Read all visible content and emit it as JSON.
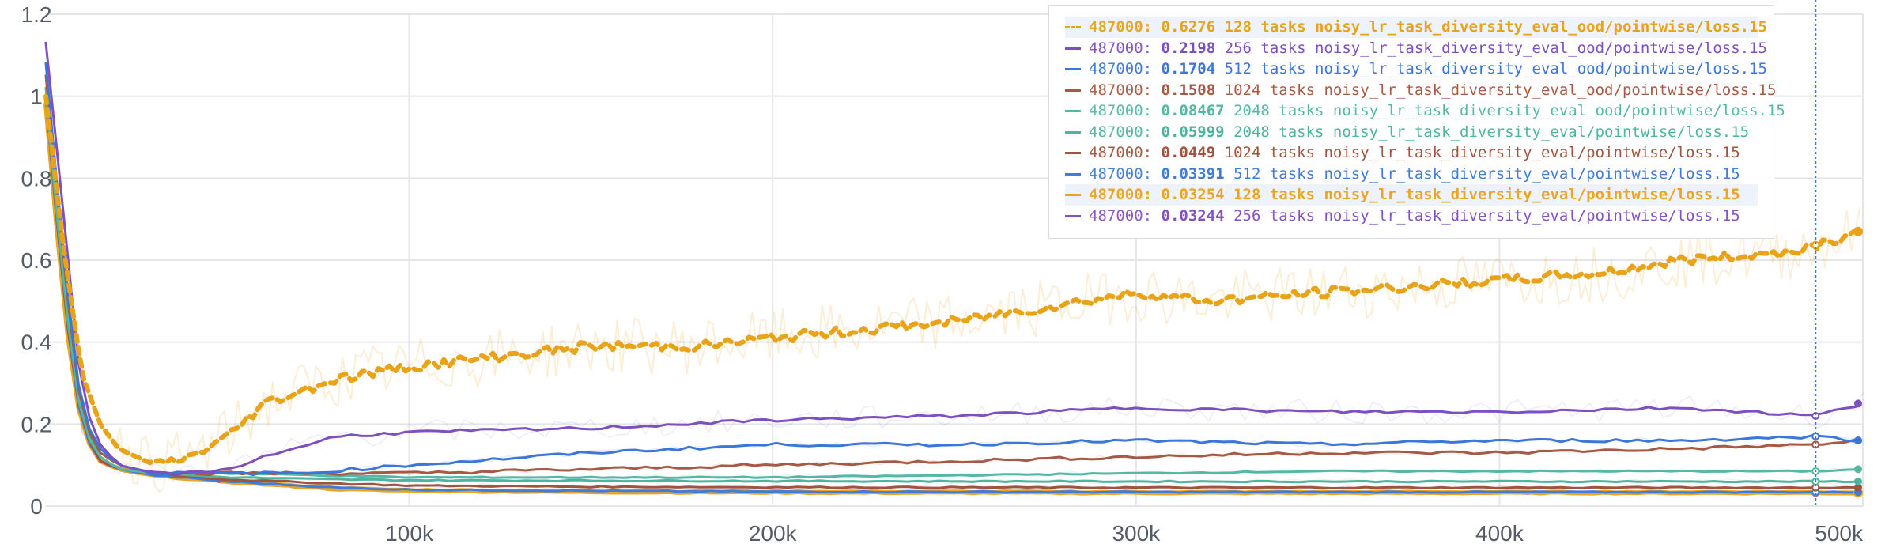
{
  "chart_data": {
    "type": "line",
    "title": "",
    "xlabel": "",
    "ylabel": "",
    "xlim": [
      0,
      500000
    ],
    "ylim": [
      0,
      1.2
    ],
    "grid": true,
    "legend_placement": "top-right",
    "hover_step": 487000,
    "x_ticks": [
      100000,
      200000,
      300000,
      400000,
      500000
    ],
    "x_tick_labels": [
      "100k",
      "200k",
      "300k",
      "400k",
      "500k"
    ],
    "y_ticks": [
      0,
      0.2,
      0.4,
      0.6,
      0.8,
      1,
      1.2
    ],
    "y_tick_labels": [
      "0",
      "0.2",
      "0.4",
      "0.6",
      "0.8",
      "1",
      "1.2"
    ],
    "series": [
      {
        "name": "128 tasks noisy_lr_task_diversity_eval_ood/pointwise/loss.15",
        "legend_step": "487000:",
        "legend_value": "0.6276",
        "legend_label": "128 tasks noisy_lr_task_diversity_eval_ood/pointwise/loss.15",
        "color": "#e8a319",
        "dashed": true,
        "highlight": true,
        "x": [
          0,
          5000,
          10000,
          15000,
          20000,
          30000,
          40000,
          50000,
          60000,
          80000,
          100000,
          120000,
          150000,
          180000,
          200000,
          250000,
          300000,
          320000,
          350000,
          400000,
          430000,
          450000,
          480000,
          500000
        ],
        "y": [
          1.0,
          0.62,
          0.32,
          0.2,
          0.14,
          0.1,
          0.12,
          0.17,
          0.25,
          0.31,
          0.34,
          0.36,
          0.39,
          0.39,
          0.41,
          0.45,
          0.52,
          0.5,
          0.52,
          0.55,
          0.57,
          0.6,
          0.62,
          0.67
        ]
      },
      {
        "name": "256 tasks noisy_lr_task_diversity_eval_ood/pointwise/loss.15",
        "legend_step": "487000:",
        "legend_value": "0.2198",
        "legend_label": "256 tasks noisy_lr_task_diversity_eval_ood/pointwise/loss.15",
        "color": "#7d4fc1",
        "dashed": false,
        "highlight": false,
        "x": [
          0,
          5000,
          10000,
          15000,
          20000,
          30000,
          40000,
          50000,
          60000,
          80000,
          100000,
          150000,
          200000,
          250000,
          300000,
          350000,
          400000,
          450000,
          487000,
          500000
        ],
        "y": [
          1.13,
          0.7,
          0.26,
          0.15,
          0.1,
          0.08,
          0.08,
          0.09,
          0.12,
          0.17,
          0.18,
          0.19,
          0.21,
          0.22,
          0.24,
          0.23,
          0.23,
          0.24,
          0.22,
          0.25
        ]
      },
      {
        "name": "512 tasks noisy_lr_task_diversity_eval_ood/pointwise/loss.15",
        "legend_step": "487000:",
        "legend_value": "0.1704",
        "legend_label": "512 tasks noisy_lr_task_diversity_eval_ood/pointwise/loss.15",
        "color": "#3b77d8",
        "dashed": false,
        "highlight": false,
        "x": [
          0,
          5000,
          10000,
          15000,
          20000,
          30000,
          50000,
          70000,
          100000,
          150000,
          200000,
          250000,
          300000,
          350000,
          400000,
          450000,
          487000,
          500000
        ],
        "y": [
          1.08,
          0.6,
          0.22,
          0.14,
          0.1,
          0.08,
          0.08,
          0.08,
          0.1,
          0.13,
          0.15,
          0.15,
          0.16,
          0.15,
          0.16,
          0.16,
          0.17,
          0.16
        ]
      },
      {
        "name": "1024 tasks noisy_lr_task_diversity_eval_ood/pointwise/loss.15",
        "legend_step": "487000:",
        "legend_value": "0.1508",
        "legend_label": "1024 tasks noisy_lr_task_diversity_eval_ood/pointwise/loss.15",
        "color": "#a65a45",
        "dashed": false,
        "highlight": false,
        "x": [
          0,
          5000,
          10000,
          15000,
          20000,
          30000,
          50000,
          100000,
          150000,
          200000,
          250000,
          300000,
          350000,
          400000,
          450000,
          487000,
          500000
        ],
        "y": [
          1.05,
          0.58,
          0.21,
          0.13,
          0.1,
          0.08,
          0.08,
          0.08,
          0.09,
          0.1,
          0.11,
          0.12,
          0.13,
          0.13,
          0.14,
          0.15,
          0.16
        ]
      },
      {
        "name": "2048 tasks noisy_lr_task_diversity_eval_ood/pointwise/loss.15",
        "legend_step": "487000:",
        "legend_value": "0.08467",
        "legend_label": "2048 tasks noisy_lr_task_diversity_eval_ood/pointwise/loss.15",
        "color": "#55b8a6",
        "dashed": false,
        "highlight": false,
        "x": [
          0,
          5000,
          10000,
          15000,
          20000,
          30000,
          50000,
          100000,
          150000,
          200000,
          250000,
          300000,
          350000,
          400000,
          450000,
          487000,
          500000
        ],
        "y": [
          1.02,
          0.55,
          0.2,
          0.12,
          0.09,
          0.08,
          0.08,
          0.07,
          0.07,
          0.07,
          0.075,
          0.08,
          0.085,
          0.085,
          0.085,
          0.085,
          0.09
        ]
      },
      {
        "name": "2048 tasks noisy_lr_task_diversity_eval/pointwise/loss.15",
        "legend_step": "487000:",
        "legend_value": "0.05999",
        "legend_label": "2048 tasks noisy_lr_task_diversity_eval/pointwise/loss.15",
        "color": "#4db59f",
        "dashed": false,
        "highlight": false,
        "x": [
          0,
          5000,
          10000,
          15000,
          20000,
          30000,
          50000,
          80000,
          100000,
          150000,
          200000,
          300000,
          400000,
          487000,
          500000
        ],
        "y": [
          1.0,
          0.52,
          0.19,
          0.12,
          0.09,
          0.08,
          0.07,
          0.065,
          0.063,
          0.062,
          0.061,
          0.06,
          0.06,
          0.06,
          0.06
        ]
      },
      {
        "name": "1024 tasks noisy_lr_task_diversity_eval/pointwise/loss.15",
        "legend_step": "487000:",
        "legend_value": "0.0449",
        "legend_label": "1024 tasks noisy_lr_task_diversity_eval/pointwise/loss.15",
        "color": "#9e553f",
        "dashed": false,
        "highlight": false,
        "x": [
          0,
          5000,
          10000,
          15000,
          20000,
          30000,
          50000,
          80000,
          100000,
          150000,
          200000,
          300000,
          400000,
          487000,
          500000
        ],
        "y": [
          1.0,
          0.5,
          0.19,
          0.11,
          0.09,
          0.08,
          0.065,
          0.055,
          0.05,
          0.047,
          0.046,
          0.045,
          0.045,
          0.045,
          0.045
        ]
      },
      {
        "name": "512 tasks noisy_lr_task_diversity_eval/pointwise/loss.15",
        "legend_step": "487000:",
        "legend_value": "0.03391",
        "legend_label": "512 tasks noisy_lr_task_diversity_eval/pointwise/loss.15",
        "color": "#3f7dd9",
        "dashed": false,
        "highlight": false,
        "x": [
          0,
          5000,
          10000,
          15000,
          20000,
          30000,
          50000,
          80000,
          100000,
          150000,
          200000,
          300000,
          400000,
          487000,
          500000
        ],
        "y": [
          0.99,
          0.5,
          0.18,
          0.11,
          0.09,
          0.075,
          0.06,
          0.045,
          0.04,
          0.037,
          0.035,
          0.034,
          0.034,
          0.034,
          0.034
        ]
      },
      {
        "name": "128 tasks noisy_lr_task_diversity_eval/pointwise/loss.15",
        "legend_step": "487000:",
        "legend_value": "0.03254",
        "legend_label": "128 tasks noisy_lr_task_diversity_eval/pointwise/loss.15",
        "color": "#eba522",
        "dashed": false,
        "highlight": true,
        "x": [
          0,
          5000,
          10000,
          15000,
          20000,
          30000,
          50000,
          80000,
          100000,
          150000,
          200000,
          300000,
          400000,
          487000,
          500000
        ],
        "y": [
          0.98,
          0.48,
          0.18,
          0.11,
          0.09,
          0.075,
          0.06,
          0.042,
          0.038,
          0.035,
          0.034,
          0.033,
          0.033,
          0.033,
          0.032
        ]
      },
      {
        "name": "256 tasks noisy_lr_task_diversity_eval/pointwise/loss.15",
        "legend_step": "487000:",
        "legend_value": "0.03244",
        "legend_label": "256 tasks noisy_lr_task_diversity_eval/pointwise/loss.15",
        "color": "#8452c4",
        "dashed": false,
        "highlight": false,
        "x": [
          0,
          5000,
          10000,
          15000,
          20000,
          30000,
          50000,
          80000,
          100000,
          150000,
          200000,
          300000,
          400000,
          487000,
          500000
        ],
        "y": [
          0.98,
          0.48,
          0.18,
          0.11,
          0.09,
          0.075,
          0.058,
          0.042,
          0.037,
          0.034,
          0.033,
          0.033,
          0.032,
          0.032,
          0.032
        ]
      }
    ]
  }
}
